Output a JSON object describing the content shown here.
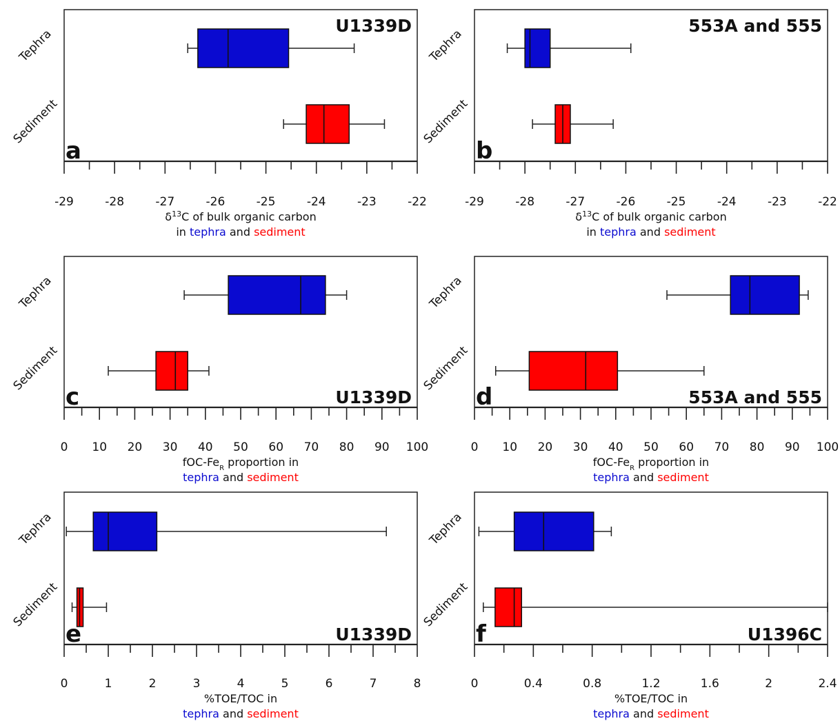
{
  "colors": {
    "tephra": "#0a0ad0",
    "sediment": "#ff0000",
    "text": "#111111"
  },
  "chart_data": [
    {
      "type": "box",
      "panel_letter": "a",
      "title": "U1339D",
      "title_pos": "top",
      "xlim": [
        -29,
        -22
      ],
      "major_ticks": [
        -29,
        -28,
        -27,
        -26,
        -25,
        -24,
        -23,
        -22
      ],
      "minor_step": 0.5,
      "tick_labels": [
        "-29",
        "-28",
        "-27",
        "-26",
        "-25",
        "-24",
        "-23",
        "-22"
      ],
      "categories": [
        "Tephra",
        "Sediment"
      ],
      "series": [
        {
          "name": "Tephra",
          "min": -26.55,
          "q1": -26.35,
          "median": -25.75,
          "q3": -24.55,
          "max": -23.25
        },
        {
          "name": "Sediment",
          "min": -24.65,
          "q1": -24.2,
          "median": -23.85,
          "q3": -23.35,
          "max": -22.65
        }
      ],
      "xlabel_line1_prefix": "δ",
      "xlabel_line1_sup": "13",
      "xlabel_line1_rest": "C of bulk organic carbon",
      "xlabel_line2": [
        "in ",
        "tephra",
        " and ",
        "sediment"
      ]
    },
    {
      "type": "box",
      "panel_letter": "b",
      "title": "553A and 555",
      "title_pos": "top",
      "xlim": [
        -29,
        -22
      ],
      "major_ticks": [
        -29,
        -28,
        -27,
        -26,
        -25,
        -24,
        -23,
        -22
      ],
      "minor_step": 0.5,
      "tick_labels": [
        "-29",
        "-28",
        "-27",
        "-26",
        "-25",
        "-24",
        "-23",
        "-22"
      ],
      "categories": [
        "Tephra",
        "Sediment"
      ],
      "series": [
        {
          "name": "Tephra",
          "min": -28.35,
          "q1": -28.0,
          "median": -27.9,
          "q3": -27.5,
          "max": -25.9
        },
        {
          "name": "Sediment",
          "min": -27.85,
          "q1": -27.4,
          "median": -27.25,
          "q3": -27.1,
          "max": -26.25
        }
      ],
      "xlabel_line1_prefix": "δ",
      "xlabel_line1_sup": "13",
      "xlabel_line1_rest": "C of bulk organic carbon",
      "xlabel_line2": [
        "in ",
        "tephra",
        " and ",
        "sediment"
      ]
    },
    {
      "type": "box",
      "panel_letter": "c",
      "title": "U1339D",
      "title_pos": "bottom",
      "xlim": [
        0,
        100
      ],
      "major_ticks": [
        0,
        10,
        20,
        30,
        40,
        50,
        60,
        70,
        80,
        90,
        100
      ],
      "minor_step": 5,
      "tick_labels": [
        "0",
        "10",
        "20",
        "30",
        "40",
        "50",
        "60",
        "70",
        "80",
        "90",
        "100"
      ],
      "categories": [
        "Tephra",
        "Sediment"
      ],
      "series": [
        {
          "name": "Tephra",
          "min": 34,
          "q1": 46.5,
          "median": 67,
          "q3": 74,
          "max": 80
        },
        {
          "name": "Sediment",
          "min": 12.5,
          "q1": 26,
          "median": 31.5,
          "q3": 35,
          "max": 41
        }
      ],
      "xlabel_line1_prefix": "fOC-Fe",
      "xlabel_line1_sub": "R",
      "xlabel_line1_rest": " proportion in",
      "xlabel_line2": [
        "",
        "tephra",
        " and ",
        "sediment"
      ]
    },
    {
      "type": "box",
      "panel_letter": "d",
      "title": "553A and 555",
      "title_pos": "bottom",
      "xlim": [
        0,
        100
      ],
      "major_ticks": [
        0,
        10,
        20,
        30,
        40,
        50,
        60,
        70,
        80,
        90,
        100
      ],
      "minor_step": 5,
      "tick_labels": [
        "0",
        "10",
        "20",
        "30",
        "40",
        "50",
        "60",
        "70",
        "80",
        "90",
        "100"
      ],
      "categories": [
        "Tephra",
        "Sediment"
      ],
      "series": [
        {
          "name": "Tephra",
          "min": 54.5,
          "q1": 72.5,
          "median": 78,
          "q3": 92,
          "max": 94.5
        },
        {
          "name": "Sediment",
          "min": 6,
          "q1": 15.5,
          "median": 31.5,
          "q3": 40.5,
          "max": 65
        }
      ],
      "xlabel_line1_prefix": "fOC-Fe",
      "xlabel_line1_sub": "R",
      "xlabel_line1_rest": " proportion in",
      "xlabel_line2": [
        "",
        "tephra",
        " and ",
        "sediment"
      ]
    },
    {
      "type": "box",
      "panel_letter": "e",
      "title": "U1339D",
      "title_pos": "bottom",
      "xlim": [
        0,
        8
      ],
      "major_ticks": [
        0,
        1,
        2,
        3,
        4,
        5,
        6,
        7,
        8
      ],
      "minor_step": 0.5,
      "tick_labels": [
        "0",
        "1",
        "2",
        "3",
        "4",
        "5",
        "6",
        "7",
        "8"
      ],
      "categories": [
        "Tephra",
        "Sediment"
      ],
      "series": [
        {
          "name": "Tephra",
          "min": 0.05,
          "q1": 0.66,
          "median": 1.0,
          "q3": 2.1,
          "max": 7.3
        },
        {
          "name": "Sediment",
          "min": 0.18,
          "q1": 0.29,
          "median": 0.35,
          "q3": 0.43,
          "max": 0.96
        }
      ],
      "xlabel_line1_prefix": "%TOE/TOC in",
      "xlabel_line1_rest": "",
      "xlabel_line2": [
        "",
        "tephra",
        " and ",
        "sediment"
      ]
    },
    {
      "type": "box",
      "panel_letter": "f",
      "title": "U1396C",
      "title_pos": "bottom",
      "xlim": [
        0,
        2.4
      ],
      "major_ticks": [
        0,
        0.4,
        0.8,
        1.2,
        1.6,
        2.0,
        2.4
      ],
      "minor_step": 0.2,
      "tick_labels": [
        "0",
        "0.4",
        "0.8",
        "1.2",
        "1.6",
        "2",
        "2.4"
      ],
      "categories": [
        "Tephra",
        "Sediment"
      ],
      "series": [
        {
          "name": "Tephra",
          "min": 0.03,
          "q1": 0.27,
          "median": 0.47,
          "q3": 0.81,
          "max": 0.93
        },
        {
          "name": "Sediment",
          "min": 0.06,
          "q1": 0.14,
          "median": 0.27,
          "q3": 0.32,
          "max": 2.4
        }
      ],
      "xlabel_line1_prefix": "%TOE/TOC in",
      "xlabel_line1_rest": "",
      "xlabel_line2": [
        "",
        "tephra",
        " and ",
        "sediment"
      ]
    }
  ]
}
